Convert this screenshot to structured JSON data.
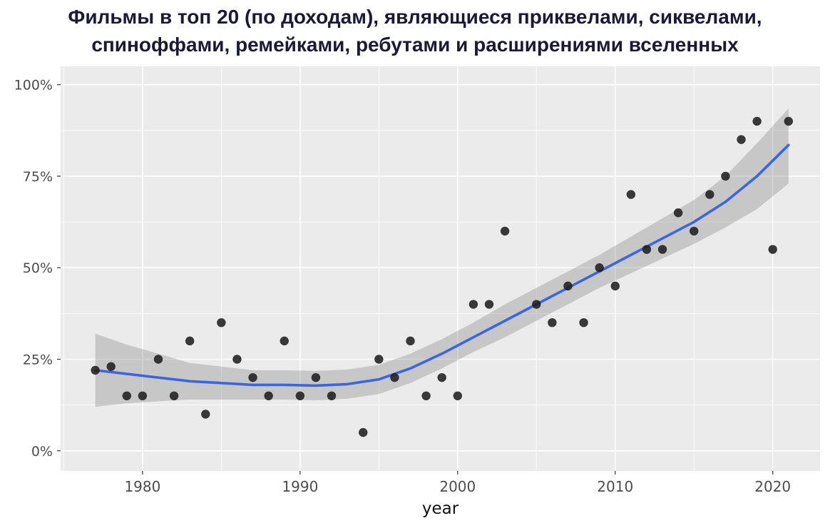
{
  "title": {
    "line1": "Фильмы в топ 20 (по доходам), являющиеся приквелами, сиквелами,",
    "line2": "спиноффами, ремейками, ребутами и расширениями вселенных"
  },
  "chart_data": {
    "type": "scatter",
    "title": "Фильмы в топ 20 (по доходам), являющиеся приквелами, сиквелами, спиноффами, ремейками, ребутами и расширениями вселенных",
    "xlabel": "year",
    "ylabel": "",
    "xlim": [
      1974.8,
      2023.0
    ],
    "ylim": [
      -5.5,
      105.0
    ],
    "x_ticks": [
      1980,
      1990,
      2000,
      2010,
      2020
    ],
    "x_minor_ticks": [
      1975,
      1985,
      1995,
      2005,
      2015
    ],
    "y_ticks": [
      0,
      25,
      50,
      75,
      100
    ],
    "y_tick_labels": [
      "0%",
      "25%",
      "50%",
      "75%",
      "100%"
    ],
    "y_minor_ticks": [
      12.5,
      37.5,
      62.5,
      87.5
    ],
    "grid": true,
    "legend": "none",
    "points": [
      [
        1977,
        22
      ],
      [
        1978,
        23
      ],
      [
        1979,
        15
      ],
      [
        1980,
        15
      ],
      [
        1981,
        25
      ],
      [
        1982,
        15
      ],
      [
        1983,
        30
      ],
      [
        1984,
        10
      ],
      [
        1985,
        35
      ],
      [
        1986,
        25
      ],
      [
        1987,
        20
      ],
      [
        1988,
        15
      ],
      [
        1989,
        30
      ],
      [
        1990,
        15
      ],
      [
        1991,
        20
      ],
      [
        1992,
        15
      ],
      [
        1994,
        5
      ],
      [
        1995,
        25
      ],
      [
        1996,
        20
      ],
      [
        1997,
        30
      ],
      [
        1998,
        15
      ],
      [
        1999,
        20
      ],
      [
        2000,
        15
      ],
      [
        2001,
        40
      ],
      [
        2002,
        40
      ],
      [
        2003,
        60
      ],
      [
        2005,
        40
      ],
      [
        2006,
        35
      ],
      [
        2007,
        45
      ],
      [
        2008,
        35
      ],
      [
        2009,
        50
      ],
      [
        2010,
        45
      ],
      [
        2011,
        70
      ],
      [
        2012,
        55
      ],
      [
        2013,
        55
      ],
      [
        2014,
        65
      ],
      [
        2015,
        60
      ],
      [
        2016,
        70
      ],
      [
        2017,
        75
      ],
      [
        2018,
        85
      ],
      [
        2019,
        90
      ],
      [
        2020,
        55
      ],
      [
        2021,
        90
      ]
    ],
    "smooth": {
      "x": [
        1977,
        1979,
        1981,
        1983,
        1985,
        1987,
        1989,
        1991,
        1993,
        1995,
        1997,
        1999,
        2001,
        2003,
        2005,
        2007,
        2009,
        2011,
        2013,
        2015,
        2017,
        2019,
        2021
      ],
      "y": [
        22.0,
        21.0,
        20.0,
        19.0,
        18.5,
        18.0,
        18.0,
        17.8,
        18.2,
        19.5,
        22.5,
        26.5,
        31.0,
        35.5,
        40.0,
        44.5,
        49.0,
        53.5,
        58.0,
        62.5,
        68.0,
        75.0,
        83.5
      ],
      "lower": [
        12.0,
        13.0,
        13.5,
        14.0,
        14.0,
        14.0,
        14.0,
        13.8,
        14.2,
        15.5,
        18.5,
        22.5,
        27.0,
        31.0,
        35.5,
        40.0,
        44.5,
        48.5,
        52.5,
        56.5,
        61.0,
        66.0,
        73.0
      ],
      "upper": [
        32.0,
        29.0,
        26.5,
        24.0,
        23.0,
        22.0,
        22.0,
        21.8,
        22.2,
        23.5,
        26.5,
        30.5,
        35.0,
        40.0,
        44.5,
        49.0,
        53.5,
        58.5,
        63.5,
        68.5,
        75.0,
        84.0,
        93.5
      ]
    },
    "colors": {
      "panel": "#ebebeb",
      "grid": "#ffffff",
      "point": "#1f1f1f",
      "line": "#3a66e0",
      "ribbon": "#8f8f8f",
      "tick_text": "#4d4d4d",
      "axis_title_text": "#111111",
      "title_text": "#1a1a38"
    }
  }
}
